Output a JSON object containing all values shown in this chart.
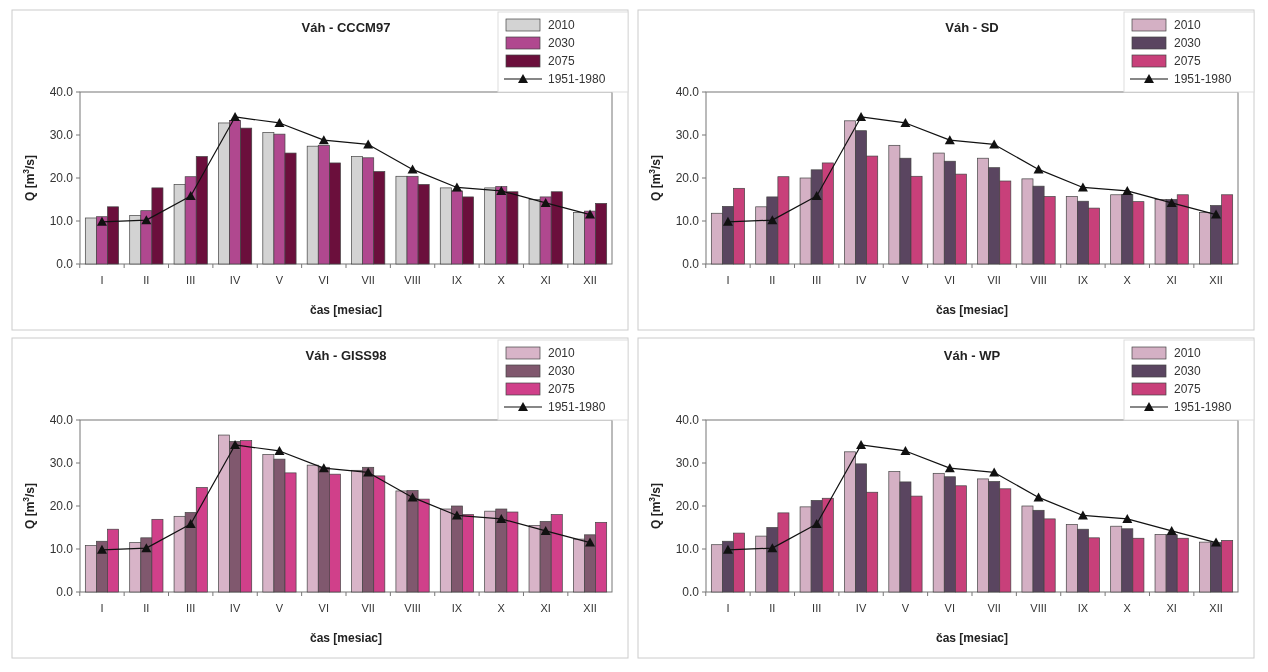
{
  "chart_data": [
    {
      "type": "bar",
      "title": "Váh - CCCM97",
      "xlabel": "čas [mesiac]",
      "ylabel": "Q [m$^{3}$/s]",
      "categories": [
        "I",
        "II",
        "III",
        "IV",
        "V",
        "VI",
        "VII",
        "VIII",
        "IX",
        "X",
        "XI",
        "XII"
      ],
      "ylim": [
        0,
        40
      ],
      "yticks": [
        {
          "value": 0,
          "label": "0.0"
        },
        {
          "value": 10,
          "label": "10.0"
        },
        {
          "value": 20,
          "label": "20.0"
        },
        {
          "value": 30,
          "label": "30.0"
        },
        {
          "value": 40,
          "label": "40.0"
        }
      ],
      "grid": false,
      "legend": "top right",
      "series": [
        {
          "name": "2010",
          "color": "#d3d3d3",
          "values": [
            10.7,
            11.3,
            18.5,
            32.8,
            30.6,
            27.4,
            25.0,
            20.4,
            17.7,
            17.7,
            15.0,
            12.0
          ]
        },
        {
          "name": "2030",
          "color": "#b0488f",
          "values": [
            11.0,
            12.4,
            20.3,
            33.4,
            30.2,
            27.6,
            24.7,
            20.4,
            17.0,
            18.0,
            15.6,
            12.3
          ]
        },
        {
          "name": "2075",
          "color": "#6b0f3c",
          "values": [
            13.3,
            17.7,
            25.0,
            31.6,
            25.8,
            23.5,
            21.5,
            18.5,
            15.6,
            16.8,
            16.8,
            14.1
          ]
        },
        {
          "name": "1951-1980",
          "type": "line",
          "color": "#111111",
          "marker": "triangle",
          "values": [
            9.8,
            10.2,
            15.8,
            34.2,
            32.8,
            28.8,
            27.8,
            22.0,
            17.8,
            17.0,
            14.2,
            11.5
          ]
        }
      ]
    },
    {
      "type": "bar",
      "title": "Váh - SD",
      "xlabel": "čas [mesiac]",
      "ylabel": "Q [m$^{3}$/s]",
      "categories": [
        "I",
        "II",
        "III",
        "IV",
        "V",
        "VI",
        "VII",
        "VIII",
        "IX",
        "X",
        "XI",
        "XII"
      ],
      "ylim": [
        0,
        40
      ],
      "yticks": [
        {
          "value": 0,
          "label": "0.0"
        },
        {
          "value": 10,
          "label": "10.0"
        },
        {
          "value": 20,
          "label": "20.0"
        },
        {
          "value": 30,
          "label": "30.0"
        },
        {
          "value": 40,
          "label": "40.0"
        }
      ],
      "grid": false,
      "legend": "top right",
      "series": [
        {
          "name": "2010",
          "color": "#d4b0c4",
          "values": [
            11.8,
            13.3,
            20.0,
            33.3,
            27.6,
            25.8,
            24.6,
            19.8,
            15.7,
            16.1,
            15.0,
            12.0
          ]
        },
        {
          "name": "2030",
          "color": "#5a4560",
          "values": [
            13.4,
            15.6,
            21.9,
            31.0,
            24.6,
            23.9,
            22.4,
            18.1,
            14.6,
            16.2,
            15.0,
            13.6
          ]
        },
        {
          "name": "2075",
          "color": "#c8407a",
          "values": [
            17.6,
            20.3,
            23.5,
            25.1,
            20.4,
            20.9,
            19.3,
            15.7,
            13.0,
            14.5,
            16.1,
            16.1
          ]
        },
        {
          "name": "1951-1980",
          "type": "line",
          "color": "#111111",
          "marker": "triangle",
          "values": [
            9.8,
            10.2,
            15.8,
            34.2,
            32.8,
            28.8,
            27.8,
            22.0,
            17.8,
            17.0,
            14.2,
            11.5
          ]
        }
      ]
    },
    {
      "type": "bar",
      "title": "Váh - GISS98",
      "xlabel": "čas [mesiac]",
      "ylabel": "Q [m$^{3}$/s]",
      "categories": [
        "I",
        "II",
        "III",
        "IV",
        "V",
        "VI",
        "VII",
        "VIII",
        "IX",
        "X",
        "XI",
        "XII"
      ],
      "ylim": [
        0,
        40
      ],
      "yticks": [
        {
          "value": 0,
          "label": "0.0"
        },
        {
          "value": 10,
          "label": "10.0"
        },
        {
          "value": 20,
          "label": "20.0"
        },
        {
          "value": 30,
          "label": "30.0"
        },
        {
          "value": 40,
          "label": "40.0"
        }
      ],
      "grid": false,
      "legend": "top right",
      "series": [
        {
          "name": "2010",
          "color": "#d8b4c8",
          "values": [
            10.8,
            11.5,
            17.6,
            36.5,
            32.0,
            29.5,
            28.3,
            23.5,
            19.3,
            18.8,
            15.5,
            12.3
          ]
        },
        {
          "name": "2030",
          "color": "#80586e",
          "values": [
            11.8,
            12.6,
            18.5,
            35.0,
            30.9,
            29.0,
            29.0,
            23.6,
            20.0,
            19.3,
            16.4,
            13.3
          ]
        },
        {
          "name": "2075",
          "color": "#d0408a",
          "values": [
            14.6,
            16.9,
            24.3,
            35.2,
            27.7,
            27.4,
            27.0,
            21.6,
            18.0,
            18.6,
            18.0,
            16.2
          ]
        },
        {
          "name": "1951-1980",
          "type": "line",
          "color": "#111111",
          "marker": "triangle",
          "values": [
            9.8,
            10.2,
            15.8,
            34.2,
            32.8,
            28.8,
            27.8,
            22.0,
            17.8,
            17.0,
            14.2,
            11.5
          ]
        }
      ]
    },
    {
      "type": "bar",
      "title": "Váh - WP",
      "xlabel": "čas [mesiac]",
      "ylabel": "Q [m$^{3}$/s]",
      "categories": [
        "I",
        "II",
        "III",
        "IV",
        "V",
        "VI",
        "VII",
        "VIII",
        "IX",
        "X",
        "XI",
        "XII"
      ],
      "ylim": [
        0,
        40
      ],
      "yticks": [
        {
          "value": 0,
          "label": "0.0"
        },
        {
          "value": 10,
          "label": "10.0"
        },
        {
          "value": 20,
          "label": "20.0"
        },
        {
          "value": 30,
          "label": "30.0"
        },
        {
          "value": 40,
          "label": "40.0"
        }
      ],
      "grid": false,
      "legend": "top right",
      "series": [
        {
          "name": "2010",
          "color": "#d4b0c4",
          "values": [
            11.0,
            13.0,
            19.8,
            32.6,
            28.0,
            27.6,
            26.3,
            20.0,
            15.7,
            15.3,
            13.4,
            11.6
          ]
        },
        {
          "name": "2030",
          "color": "#5a4560",
          "values": [
            11.8,
            15.0,
            21.3,
            29.8,
            25.6,
            26.8,
            25.7,
            19.0,
            14.6,
            14.7,
            13.3,
            11.5
          ]
        },
        {
          "name": "2075",
          "color": "#c8407a",
          "values": [
            13.7,
            18.4,
            21.8,
            23.2,
            22.3,
            24.7,
            24.0,
            17.0,
            12.6,
            12.5,
            12.5,
            12.0
          ]
        },
        {
          "name": "1951-1980",
          "type": "line",
          "color": "#111111",
          "marker": "triangle",
          "values": [
            9.8,
            10.2,
            15.8,
            34.2,
            32.8,
            28.8,
            27.8,
            22.0,
            17.8,
            17.0,
            14.2,
            11.5
          ]
        }
      ]
    }
  ]
}
